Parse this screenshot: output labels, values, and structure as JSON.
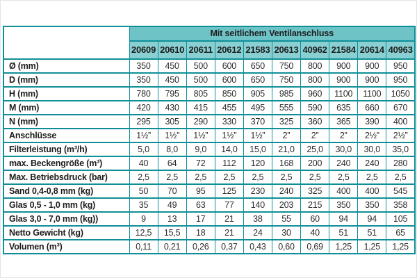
{
  "colors": {
    "border_teal": "#0e8f97",
    "band_teal": "#6ec3c7",
    "header_cell_teal": "#8ad0d3",
    "text": "#1d1d1d"
  },
  "table": {
    "band_title": "Mit seitlichem Ventilanschluss",
    "columns": [
      "20609",
      "20610",
      "20611",
      "20612",
      "21583",
      "20613",
      "40962",
      "21584",
      "20614",
      "40963"
    ],
    "rows": [
      {
        "label": "Ø (mm)",
        "values": [
          "350",
          "450",
          "500",
          "600",
          "650",
          "750",
          "800",
          "900",
          "900",
          "950"
        ]
      },
      {
        "label": "D (mm)",
        "values": [
          "350",
          "450",
          "500",
          "600",
          "650",
          "750",
          "800",
          "900",
          "900",
          "950"
        ]
      },
      {
        "label": "H (mm)",
        "values": [
          "780",
          "795",
          "805",
          "850",
          "905",
          "985",
          "960",
          "1100",
          "1100",
          "1050"
        ]
      },
      {
        "label": "M (mm)",
        "values": [
          "420",
          "430",
          "415",
          "455",
          "495",
          "555",
          "590",
          "635",
          "660",
          "670"
        ]
      },
      {
        "label": "N (mm)",
        "values": [
          "295",
          "305",
          "290",
          "330",
          "370",
          "325",
          "360",
          "365",
          "390",
          "400"
        ]
      },
      {
        "label": "Anschlüsse",
        "values": [
          "1½”",
          "1½”",
          "1½”",
          "1½”",
          "1½”",
          "2”",
          "2”",
          "2”",
          "2½”",
          "2½”"
        ]
      },
      {
        "label": "Filterleistung (m³/h)",
        "values": [
          "5,0",
          "8,0",
          "9,0",
          "14,0",
          "15,0",
          "21,0",
          "25,0",
          "30,0",
          "30,0",
          "35,0"
        ]
      },
      {
        "label": "max. Beckengröße (m³)",
        "values": [
          "40",
          "64",
          "72",
          "112",
          "120",
          "168",
          "200",
          "240",
          "240",
          "280"
        ]
      },
      {
        "label": "Max. Betriebsdruck (bar)",
        "values": [
          "2,5",
          "2,5",
          "2,5",
          "2,5",
          "2,5",
          "2,5",
          "2,5",
          "2,5",
          "2,5",
          "2,5"
        ]
      },
      {
        "label": "Sand 0,4-0,8 mm (kg)",
        "values": [
          "50",
          "70",
          "95",
          "125",
          "230",
          "240",
          "325",
          "400",
          "400",
          "545"
        ]
      },
      {
        "label": "Glas 0,5 - 1,0 mm (kg)",
        "values": [
          "35",
          "49",
          "63",
          "77",
          "140",
          "203",
          "215",
          "350",
          "350",
          "358"
        ]
      },
      {
        "label": "Glas 3,0 - 7,0 mm (kg))",
        "values": [
          "9",
          "13",
          "17",
          "21",
          "38",
          "55",
          "60",
          "94",
          "94",
          "105"
        ]
      },
      {
        "label": "Netto Gewicht (kg)",
        "values": [
          "12,5",
          "15,5",
          "18",
          "21",
          "24",
          "30",
          "40",
          "51",
          "51",
          "65"
        ]
      },
      {
        "label": "Volumen (m³)",
        "values": [
          "0,11",
          "0,21",
          "0,26",
          "0,37",
          "0,43",
          "0,60",
          "0,69",
          "1,25",
          "1,25",
          "1,25"
        ]
      }
    ]
  }
}
